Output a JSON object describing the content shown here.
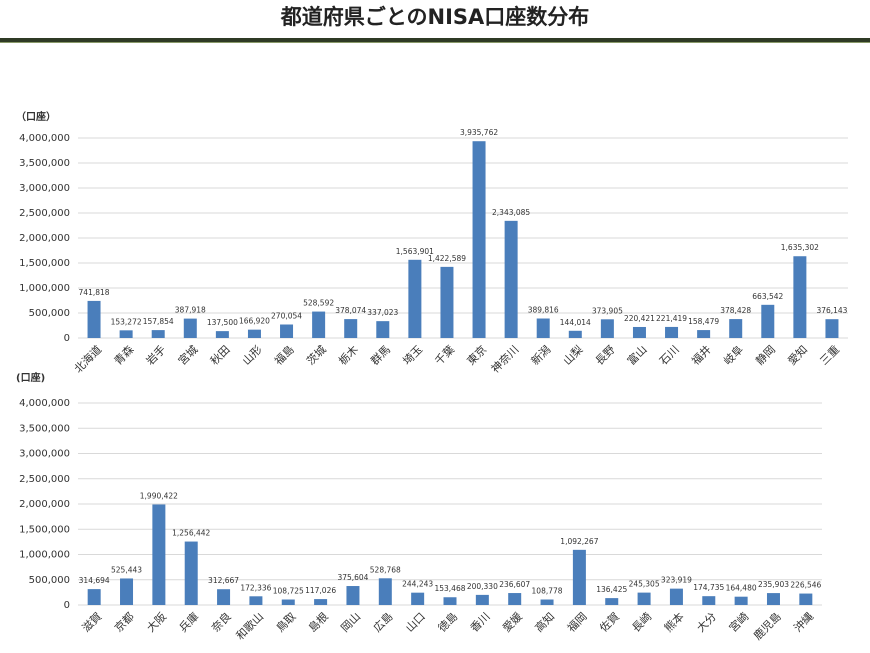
{
  "header": {
    "title": "都道府県ごとのNISA口座数分布"
  },
  "chart_data": [
    {
      "type": "bar",
      "y_label": "（口座）",
      "color": "#4a7ebb",
      "grid": true,
      "categories": [
        "北海道",
        "青森",
        "岩手",
        "宮城",
        "秋田",
        "山形",
        "福島",
        "茨城",
        "栃木",
        "群馬",
        "埼玉",
        "千葉",
        "東京",
        "神奈川",
        "新潟",
        "山梨",
        "長野",
        "富山",
        "石川",
        "福井",
        "岐阜",
        "静岡",
        "愛知",
        "三重"
      ],
      "values": [
        741818,
        153272,
        157854,
        387918,
        137500,
        166920,
        270054,
        528592,
        378074,
        337023,
        1563901,
        1422589,
        3935762,
        2343085,
        389816,
        144014,
        373905,
        220421,
        221419,
        158479,
        378428,
        663542,
        1635302,
        376143
      ],
      "value_labels": [
        "741,818",
        "153,272",
        "157,854",
        "387,918",
        "137,500",
        "166,920",
        "270,054",
        "528,592",
        "378,074",
        "337,023",
        "1,563,901",
        "1,422,589",
        "3,935,762",
        "2,343,085",
        "389,816",
        "144,014",
        "373,905",
        "220,421",
        "221,419",
        "158,479",
        "378,428",
        "663,542",
        "1,635,302",
        "376,143"
      ],
      "ylim": [
        0,
        4000000
      ],
      "yticks": [
        0,
        {
          "value": 500000,
          "label": "500,000"
        },
        {
          "value": 1000000,
          "label": "1,000,000"
        },
        {
          "value": 1500000,
          "label": "1,500,000"
        },
        {
          "value": 2000000,
          "label": "2,000,000"
        },
        {
          "value": 2500000,
          "label": "2,500,000"
        },
        {
          "value": 3000000,
          "label": "3,000,000"
        },
        {
          "value": 3500000,
          "label": "3,500,000"
        },
        {
          "value": 4000000,
          "label": "4,000,000"
        }
      ]
    },
    {
      "type": "bar",
      "y_label": "(口座)",
      "color": "#4a7ebb",
      "grid": true,
      "categories": [
        "滋賀",
        "京都",
        "大阪",
        "兵庫",
        "奈良",
        "和歌山",
        "鳥取",
        "島根",
        "岡山",
        "広島",
        "山口",
        "徳島",
        "香川",
        "愛媛",
        "高知",
        "福岡",
        "佐賀",
        "長崎",
        "熊本",
        "大分",
        "宮崎",
        "鹿児島",
        "沖縄"
      ],
      "values": [
        314694,
        525443,
        1990422,
        1256442,
        312667,
        172336,
        108725,
        117026,
        375604,
        528768,
        244243,
        153468,
        200330,
        236607,
        108778,
        1092267,
        136425,
        245305,
        323919,
        174735,
        164480,
        235903,
        226546
      ],
      "value_labels": [
        "314,694",
        "525,443",
        "1,990,422",
        "1,256,442",
        "312,667",
        "172,336",
        "108,725",
        "117,026",
        "375,604",
        "528,768",
        "244,243",
        "153,468",
        "200,330",
        "236,607",
        "108,778",
        "1,092,267",
        "136,425",
        "245,305",
        "323,919",
        "174,735",
        "164,480",
        "235,903",
        "226,546"
      ],
      "ylim": [
        0,
        4000000
      ],
      "yticks": [
        0,
        {
          "value": 500000,
          "label": "500,000"
        },
        {
          "value": 1000000,
          "label": "1,000,000"
        },
        {
          "value": 1500000,
          "label": "1,500,000"
        },
        {
          "value": 2000000,
          "label": "2,000,000"
        },
        {
          "value": 2500000,
          "label": "2,500,000"
        },
        {
          "value": 3000000,
          "label": "3,000,000"
        },
        {
          "value": 3500000,
          "label": "3,500,000"
        },
        {
          "value": 4000000,
          "label": "4,000,000"
        }
      ]
    }
  ]
}
